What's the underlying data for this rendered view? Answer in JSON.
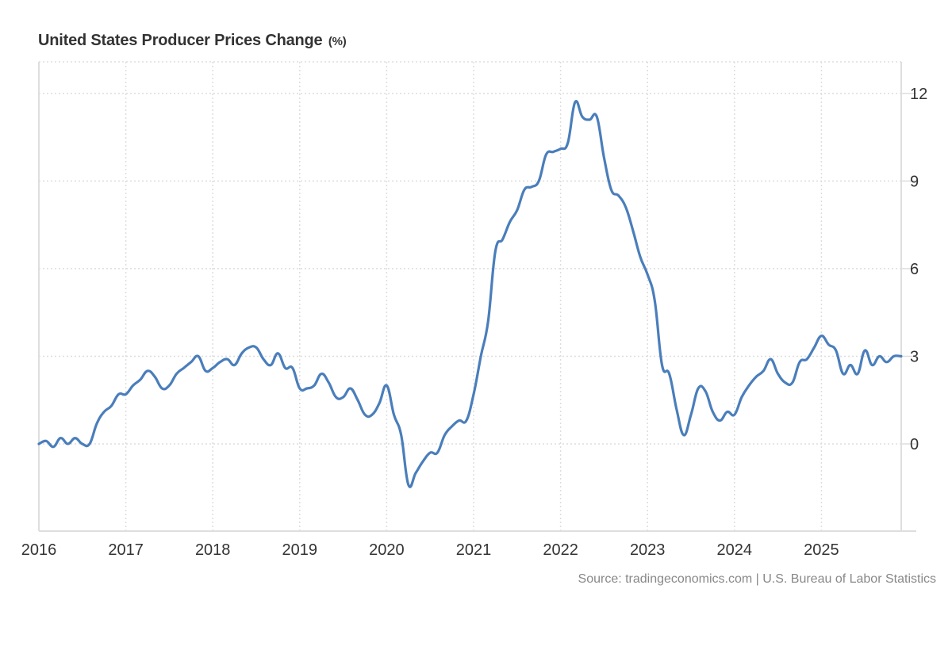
{
  "chart_data": {
    "type": "line",
    "title": "United States Producer Prices Change",
    "unit": "(%)",
    "xlabel": "",
    "ylabel": "",
    "x_start": "2016-01",
    "x_end": "2025-12",
    "frequency": "monthly",
    "x_ticks": [
      "2016",
      "2017",
      "2018",
      "2019",
      "2020",
      "2021",
      "2022",
      "2023",
      "2024",
      "2025"
    ],
    "y_ticks": [
      0,
      3,
      6,
      9,
      12
    ],
    "ylim": [
      -3,
      13
    ],
    "y_axis_position": "right",
    "grid": true,
    "line_color": "#4a7ebb",
    "series": [
      {
        "name": "Producer Prices Change",
        "values": [
          0.0,
          0.1,
          -0.1,
          0.2,
          0.0,
          0.2,
          0.0,
          0.0,
          0.7,
          1.1,
          1.3,
          1.7,
          1.7,
          2.0,
          2.2,
          2.5,
          2.3,
          1.9,
          2.0,
          2.4,
          2.6,
          2.8,
          3.0,
          2.5,
          2.6,
          2.8,
          2.9,
          2.7,
          3.1,
          3.3,
          3.3,
          2.9,
          2.7,
          3.1,
          2.6,
          2.6,
          1.9,
          1.9,
          2.0,
          2.4,
          2.1,
          1.6,
          1.6,
          1.9,
          1.5,
          1.0,
          1.0,
          1.4,
          2.0,
          1.0,
          0.3,
          -1.4,
          -1.0,
          -0.6,
          -0.3,
          -0.3,
          0.3,
          0.6,
          0.8,
          0.8,
          1.7,
          3.0,
          4.2,
          6.6,
          7.0,
          7.6,
          8.0,
          8.7,
          8.8,
          9.0,
          9.9,
          10.0,
          10.1,
          10.3,
          11.7,
          11.2,
          11.1,
          11.2,
          9.8,
          8.7,
          8.5,
          8.1,
          7.3,
          6.4,
          5.8,
          4.9,
          2.7,
          2.4,
          1.2,
          0.3,
          1.0,
          1.9,
          1.8,
          1.1,
          0.8,
          1.1,
          1.0,
          1.6,
          2.0,
          2.3,
          2.5,
          2.9,
          2.4,
          2.1,
          2.1,
          2.8,
          2.9,
          3.3,
          3.7,
          3.4,
          3.2,
          2.4,
          2.7,
          2.4,
          3.2,
          2.7,
          3.0,
          2.8,
          3.0,
          3.0
        ]
      }
    ],
    "source": "Source: tradingeconomics.com | U.S. Bureau of Labor Statistics"
  }
}
